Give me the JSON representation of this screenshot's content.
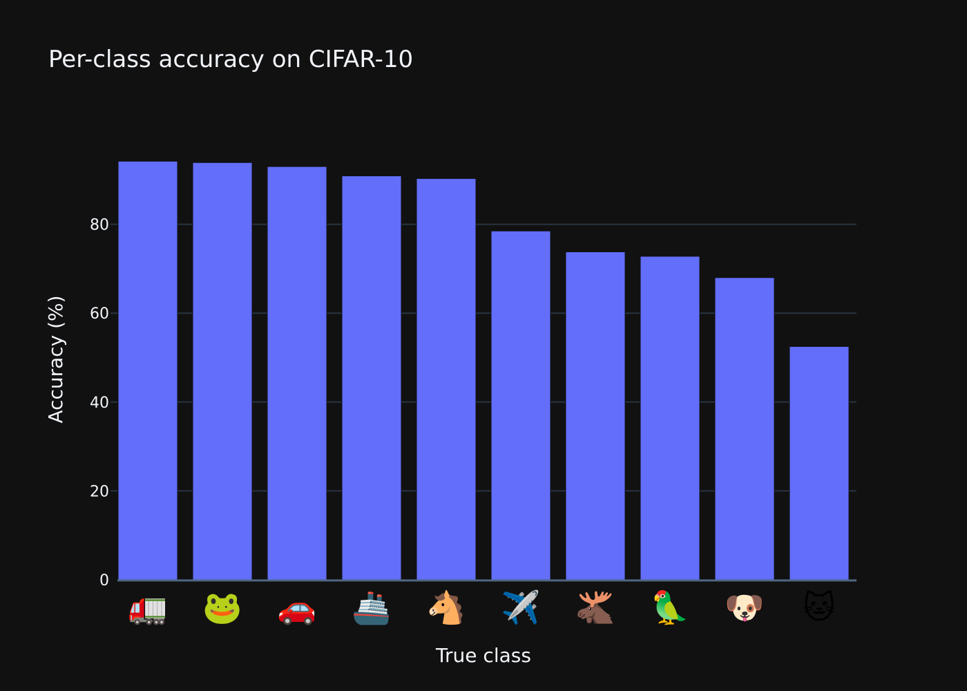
{
  "chart_data": {
    "type": "bar",
    "title": "Per-class accuracy on CIFAR-10",
    "xlabel": "True class",
    "ylabel": "Accuracy (%)",
    "categories": [
      "🚛",
      "🐸",
      "🚗",
      "🚢",
      "🐴",
      "✈️",
      "🫎",
      "🦜",
      "🐶",
      "🐱"
    ],
    "values": [
      94.2,
      93.9,
      93.0,
      90.9,
      90.3,
      78.5,
      73.8,
      72.8,
      68.0,
      52.5
    ],
    "ylim": [
      0,
      100
    ],
    "yticks": [
      0,
      20,
      40,
      60,
      80
    ],
    "grid": true,
    "legend": "none",
    "colors": {
      "background": "#111111",
      "bar": "#636efa",
      "grid": "#283442",
      "axis_line": "#506784",
      "text": "#f2f5fa"
    }
  }
}
